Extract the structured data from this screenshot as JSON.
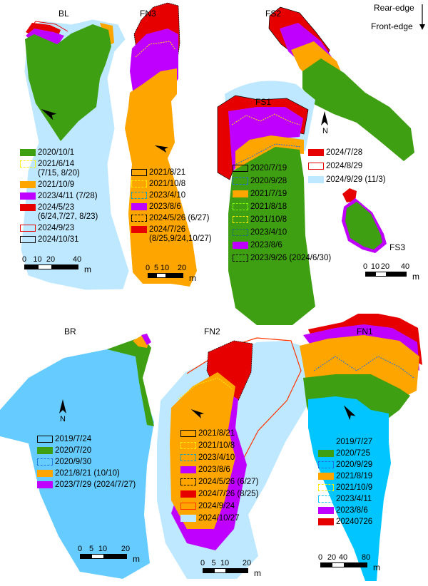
{
  "orientation": {
    "rear_edge": "Rear-edge",
    "front_edge": "Front-edge"
  },
  "north_label": "N",
  "colors": {
    "green": "#3f9f12",
    "orange": "#ffa500",
    "purple": "#c000ff",
    "red": "#e60000",
    "light_blue": "#bee8ff",
    "br_blue": "#66ccff",
    "fn1_blue": "#00c5ff",
    "yellow": "#ffff00",
    "blue_dash": "#1f6fe0",
    "teal_dash": "#1aa0b0"
  },
  "maps": {
    "BL": {
      "name": "BL",
      "scale": {
        "ticks": [
          "0",
          "10",
          "20",
          "40"
        ],
        "unit": "m"
      },
      "legend": [
        {
          "label": "2020/10/1",
          "sym": "fill",
          "color": "#3f9f12"
        },
        {
          "label": "2021/6/14\n(7/15, 8/20)",
          "sym": "dashed",
          "color": "#ffee00"
        },
        {
          "label": "2021/10/9",
          "sym": "fill",
          "color": "#ffa500"
        },
        {
          "label": "2023/4/11 (7/28)",
          "sym": "fill",
          "color": "#c000ff"
        },
        {
          "label": "2024/5/23\n(6/24,7/27, 8/23)",
          "sym": "fill",
          "color": "#e60000"
        },
        {
          "label": "2024/9/23",
          "sym": "outline",
          "color": "#e60000"
        },
        {
          "label": "2024/10/31",
          "sym": "outline",
          "color": "#000000"
        }
      ]
    },
    "FN3": {
      "name": "FN3",
      "scale": {
        "ticks": [
          "0",
          "5",
          "10",
          "20"
        ],
        "unit": "m"
      },
      "legend": [
        {
          "label": "2021/8/21",
          "sym": "outline",
          "color": "#000000"
        },
        {
          "label": "2021/10/8",
          "sym": "dashed",
          "color": "#ffee00"
        },
        {
          "label": "2023/4/10",
          "sym": "dashed",
          "color": "#1aa0b0"
        },
        {
          "label": "2023/8/6",
          "sym": "fill",
          "color": "#c000ff"
        },
        {
          "label": "2024/5/26 (6/27)",
          "sym": "dashed",
          "color": "#000000"
        },
        {
          "label": "2024/7/26\n(8/25,9/24,10/27)",
          "sym": "fill",
          "color": "#e60000"
        }
      ]
    },
    "FS2": {
      "name": "FS2",
      "legend": [
        {
          "label": "2024/7/28",
          "sym": "fill",
          "color": "#e60000"
        },
        {
          "label": "2024/8/29",
          "sym": "outline",
          "color": "#e60000"
        },
        {
          "label": "2024/9/29 (11/3)",
          "sym": "fill",
          "color": "#bee8ff"
        }
      ]
    },
    "FS1": {
      "name": "FS1",
      "legend": [
        {
          "label": "2020/7/19",
          "sym": "outline",
          "color": "#000000"
        },
        {
          "label": "2020/9/28",
          "sym": "dashed",
          "color": "#1f6fe0"
        },
        {
          "label": "2021/7/19",
          "sym": "fill",
          "color": "#ffa500"
        },
        {
          "label": "2021/8/18",
          "sym": "dashed",
          "color": "#80ff00"
        },
        {
          "label": "2021/10/8",
          "sym": "dashed",
          "color": "#ffee00"
        },
        {
          "label": "2023/4/10",
          "sym": "dashed",
          "color": "#1a7070"
        },
        {
          "label": "2023/8/6",
          "sym": "fill",
          "color": "#c000ff"
        },
        {
          "label": "2023/9/26 (2024/6/30)",
          "sym": "dashed",
          "color": "#000000"
        }
      ]
    },
    "FS3": {
      "name": "FS3",
      "scale": {
        "ticks": [
          "0",
          "10",
          "20",
          "40"
        ],
        "unit": "m"
      }
    },
    "BR": {
      "name": "BR",
      "scale": {
        "ticks": [
          "0",
          "5",
          "10",
          "20"
        ],
        "unit": "m"
      },
      "legend": [
        {
          "label": "2019/7/24",
          "sym": "outline",
          "color": "#000000"
        },
        {
          "label": "2020/7/20",
          "sym": "fill",
          "color": "#3f9f12"
        },
        {
          "label": "2020/9/30",
          "sym": "dashed",
          "color": "#1f6fe0"
        },
        {
          "label": "2021/8/21 (10/10)",
          "sym": "fill",
          "color": "#ffa500"
        },
        {
          "label": "2023/7/29 (2024/7/27)",
          "sym": "fill",
          "color": "#c000ff"
        }
      ]
    },
    "FN2": {
      "name": "FN2",
      "scale": {
        "ticks": [
          "0",
          "5",
          "10",
          "20"
        ],
        "unit": "m"
      },
      "legend": [
        {
          "label": "2021/8/21",
          "sym": "outline",
          "color": "#000000"
        },
        {
          "label": "2021/10/8",
          "sym": "dashed",
          "color": "#ffee00"
        },
        {
          "label": "2023/4/10",
          "sym": "dashed",
          "color": "#1aa0b0"
        },
        {
          "label": "2023/8/6",
          "sym": "fill",
          "color": "#c000ff"
        },
        {
          "label": "2024/5/26 (6/27)",
          "sym": "dashed",
          "color": "#000000"
        },
        {
          "label": "2024/7/26 (8/25)",
          "sym": "fill",
          "color": "#e60000"
        },
        {
          "label": "2024/9/24",
          "sym": "outline",
          "color": "#ff3300"
        },
        {
          "label": "2024/10/27",
          "sym": "fill",
          "color": "#bee8ff"
        }
      ]
    },
    "FN1": {
      "name": "FN1",
      "scale": {
        "ticks": [
          "0",
          "20",
          "40",
          "80"
        ],
        "unit": "m"
      },
      "legend": [
        {
          "label": "2019/7/27",
          "sym": "fill",
          "color": "#00c5ff"
        },
        {
          "label": "2020/725",
          "sym": "fill",
          "color": "#3f9f12"
        },
        {
          "label": "2020/9/29",
          "sym": "dashed",
          "color": "#1f6fe0"
        },
        {
          "label": "2021/8/19",
          "sym": "fill",
          "color": "#ffa500"
        },
        {
          "label": "2021/10/9",
          "sym": "dashed",
          "color": "#ffee00"
        },
        {
          "label": "2023/4/11",
          "sym": "dashed",
          "color": "#00c5ff"
        },
        {
          "label": "2023/8/6",
          "sym": "fill",
          "color": "#c000ff"
        },
        {
          "label": "20240726",
          "sym": "fill",
          "color": "#e60000"
        }
      ]
    }
  }
}
